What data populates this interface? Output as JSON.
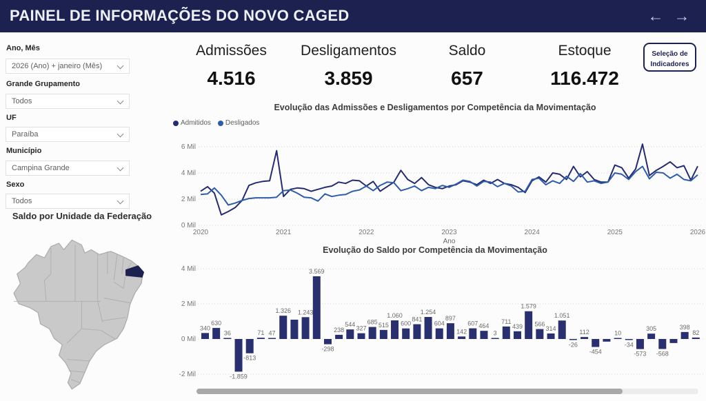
{
  "header": {
    "title": "PAINEL DE INFORMAÇÕES DO NOVO CAGED",
    "back_arrow": "←",
    "forward_arrow": "→",
    "bg_color": "#1c2150"
  },
  "filters": [
    {
      "label": "Ano, Mês",
      "value": "2026 (Ano) + janeiro (Mês)"
    },
    {
      "label": "Grande Grupamento",
      "value": "Todos"
    },
    {
      "label": "UF",
      "value": "Paraíba"
    },
    {
      "label": "Município",
      "value": "Campina Grande"
    },
    {
      "label": "Sexo",
      "value": "Todos"
    }
  ],
  "kpis": [
    {
      "label": "Admissões",
      "value": "4.516"
    },
    {
      "label": "Desligamentos",
      "value": "3.859"
    },
    {
      "label": "Saldo",
      "value": "657"
    },
    {
      "label": "Estoque",
      "value": "116.472"
    }
  ],
  "indicator_button": {
    "line1": "Seleção de",
    "line2": "Indicadores"
  },
  "map": {
    "title": "Saldo por Unidade da Federação",
    "highlighted_state": "Paraíba",
    "state_fill": "#c9c9c9",
    "state_border": "#a9a9a9",
    "highlight_fill": "#1c2150"
  },
  "chart_data": [
    {
      "type": "line",
      "title": "Evolução das Admissões e Desligamentos por Competência da Movimentação",
      "xlabel": "Ano",
      "x_ticks": [
        "2020",
        "2021",
        "2022",
        "2023",
        "2024",
        "2025",
        "2026"
      ],
      "y_ticks": [
        {
          "label": "6 Mil",
          "value": 6
        },
        {
          "label": "4 Mil",
          "value": 4
        },
        {
          "label": "2 Mil",
          "value": 2
        },
        {
          "label": "0 Mil",
          "value": 0
        }
      ],
      "ylim_mil": [
        0,
        6.4
      ],
      "grid": true,
      "legend_position": "top-left",
      "series": [
        {
          "name": "Admitidos",
          "color": "#252c6d",
          "values": [
            2.6,
            2.95,
            2.45,
            0.8,
            1.05,
            1.35,
            1.9,
            3.05,
            3.25,
            3.35,
            3.4,
            5.7,
            2.2,
            2.75,
            2.85,
            2.8,
            2.6,
            2.75,
            2.9,
            3.0,
            3.3,
            3.2,
            3.45,
            3.4,
            3.0,
            3.35,
            2.6,
            2.95,
            3.3,
            4.2,
            3.5,
            3.2,
            3.65,
            3.1,
            2.9,
            2.8,
            3.0,
            3.1,
            3.4,
            3.3,
            3.1,
            3.45,
            3.2,
            3.5,
            3.2,
            3.1,
            2.9,
            2.5,
            3.4,
            3.7,
            3.3,
            4.0,
            3.9,
            3.5,
            4.5,
            3.7,
            4.1,
            3.5,
            3.3,
            3.3,
            4.6,
            4.4,
            3.6,
            4.3,
            6.2,
            3.8,
            4.2,
            4.5,
            4.85,
            4.4,
            4.55,
            3.45,
            4.516
          ]
        },
        {
          "name": "Desligados",
          "color": "#2f5ca8",
          "values": [
            2.35,
            2.4,
            2.85,
            2.3,
            1.55,
            1.7,
            1.9,
            2.05,
            2.1,
            2.1,
            2.1,
            2.15,
            2.65,
            2.7,
            2.45,
            2.15,
            2.1,
            1.85,
            2.4,
            2.2,
            2.3,
            2.35,
            2.6,
            2.7,
            3.0,
            2.65,
            3.05,
            3.3,
            3.25,
            2.65,
            2.8,
            3.0,
            2.65,
            2.9,
            2.8,
            3.05,
            2.9,
            3.15,
            3.45,
            3.35,
            3.0,
            3.35,
            3.3,
            2.95,
            3.2,
            3.0,
            2.55,
            2.6,
            3.5,
            3.6,
            3.1,
            3.4,
            3.2,
            3.75,
            3.35,
            3.95,
            3.3,
            3.4,
            3.2,
            3.3,
            4.0,
            3.9,
            3.5,
            4.1,
            4.5,
            3.55,
            4.05,
            4.0,
            3.6,
            3.9,
            3.5,
            3.4,
            3.859
          ]
        }
      ]
    },
    {
      "type": "bar",
      "title": "Evolução do Saldo por Competência da Movimentação",
      "bar_color": "#2a2f6e",
      "y_ticks": [
        {
          "label": "4 Mil",
          "value": 4000
        },
        {
          "label": "2 Mil",
          "value": 2000
        },
        {
          "label": "0 Mil",
          "value": 0
        },
        {
          "label": "-2 Mil",
          "value": -2000
        }
      ],
      "ylim": [
        -2300,
        4300
      ],
      "grid": true,
      "values": [
        340,
        630,
        36,
        -1859,
        -813,
        71,
        47,
        1326,
        1100,
        1243,
        3569,
        -298,
        238,
        544,
        327,
        685,
        515,
        1060,
        600,
        841,
        1254,
        604,
        897,
        142,
        607,
        464,
        3,
        711,
        439,
        1579,
        566,
        314,
        1051,
        -26,
        112,
        -454,
        -150,
        10,
        -34,
        -573,
        305,
        -568,
        -230,
        398,
        82
      ],
      "labels": [
        "340",
        "630",
        "36",
        "-1.859",
        "-813",
        "71",
        "47",
        "1.326",
        "",
        "1.243",
        "3.569",
        "-298",
        "238",
        "544",
        "327",
        "685",
        "515",
        "1.060",
        "600",
        "841",
        "1.254",
        "604",
        "897",
        "142",
        "607",
        "464",
        "3",
        "711",
        "439",
        "1.579",
        "566",
        "314",
        "1.051",
        "-26",
        "112",
        "-454",
        "",
        "10",
        "-34",
        "-573",
        "305",
        "-568",
        "",
        "398",
        "82"
      ]
    }
  ]
}
